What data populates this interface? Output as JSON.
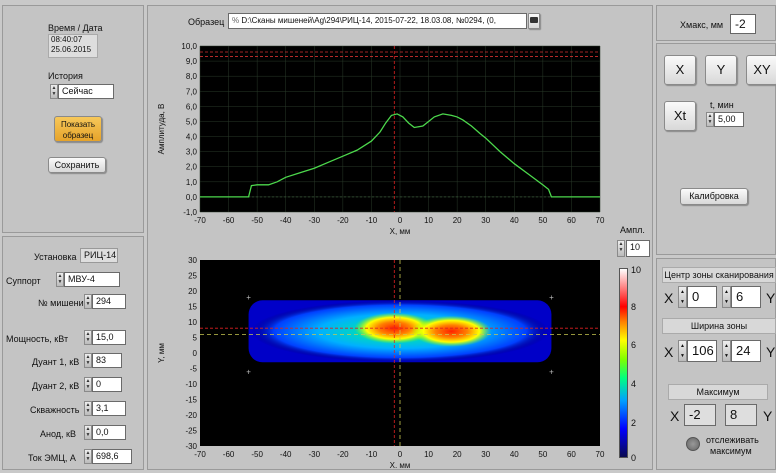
{
  "left": {
    "time_label": "Время / Дата",
    "time": "08:40:07",
    "date": "25.06.2015",
    "history_label": "История",
    "history_value": "Сейчас",
    "show_sample_button": "Показать образец",
    "save_button": "Сохранить",
    "install_label": "Установка",
    "install_value": "РИЦ-14",
    "support_label": "Суппорт",
    "support_value": "МВУ-4",
    "target_label": "№ мишени",
    "target_value": "294",
    "power_label": "Мощность, кВт",
    "power_value": "15,0",
    "duant1_label": "Дуант 1, кВ",
    "duant1_value": "83",
    "duant2_label": "Дуант 2, кВ",
    "duant2_value": "0",
    "duty_label": "Скважность",
    "duty_value": "3,1",
    "anode_label": "Анод, кВ",
    "anode_value": "0,0",
    "emc_label": "Ток ЭМЦ, А",
    "emc_value": "698,6"
  },
  "header": {
    "sample_label": "Образец",
    "sample_path": "D:\\Сканы мишеней\\Ag\\294\\РИЦ-14, 2015-07-22, 18.03.08, №0294, (0,",
    "path_prefix": "%"
  },
  "right": {
    "xmax_label": "Xмакс, мм",
    "xmax_value": "-2",
    "btn_x": "X",
    "btn_y": "Y",
    "btn_xy": "XY",
    "btn_xt": "Xt",
    "t_label": "t, мин",
    "t_value": "5,00",
    "calibration_button": "Калибровка",
    "scan_center_header": "Центр зоны сканирования",
    "scan_center_x_label": "X",
    "scan_center_x": "0",
    "scan_center_y": "6",
    "scan_center_y_label": "Y",
    "zone_width_header": "Ширина зоны",
    "zone_width_x_label": "X",
    "zone_width_x": "106",
    "zone_width_y": "24",
    "zone_width_y_label": "Y",
    "max_header": "Максимум",
    "max_x_label": "X",
    "max_x": "-2",
    "max_y": "8",
    "max_y_label": "Y",
    "track_label_1": "отслеживать",
    "track_label_2": "максимум"
  },
  "colorbar": {
    "title": "Ампл.",
    "max_value": "10",
    "ticks": [
      "10",
      "8",
      "6",
      "4",
      "2",
      "0"
    ]
  },
  "chart_data": [
    {
      "type": "line",
      "ylabel": "Амплитуда, В",
      "xlabel": "X, мм",
      "xlim": [
        -70,
        70
      ],
      "ylim": [
        -1,
        10
      ],
      "xticks": [
        "-70",
        "-60",
        "-50",
        "-40",
        "-30",
        "-20",
        "-10",
        "0",
        "10",
        "20",
        "30",
        "40",
        "50",
        "60",
        "70"
      ],
      "yticks": [
        "10,0",
        "9,0",
        "8,0",
        "7,0",
        "6,0",
        "5,0",
        "4,0",
        "3,0",
        "2,0",
        "1,0",
        "0,0",
        "-1,0"
      ],
      "series": [
        {
          "color": "#4cd84c",
          "x": [
            -70,
            -53,
            -52,
            -50,
            -46,
            -43,
            -40,
            -35,
            -30,
            -25,
            -20,
            -15,
            -10,
            -7,
            -5,
            -3,
            -1,
            1,
            3,
            5,
            8,
            10,
            12,
            15,
            18,
            20,
            22,
            25,
            28,
            30,
            35,
            40,
            45,
            50,
            52,
            53,
            70
          ],
          "y": [
            0,
            0,
            0.75,
            0.8,
            0.8,
            1.0,
            1.3,
            1.6,
            1.9,
            2.3,
            2.7,
            3.1,
            3.7,
            4.3,
            4.9,
            5.4,
            5.5,
            5.3,
            4.9,
            4.6,
            4.7,
            5.0,
            5.3,
            5.5,
            5.4,
            5.3,
            5.1,
            4.7,
            4.2,
            3.9,
            3.0,
            2.2,
            1.5,
            0.8,
            0.5,
            0,
            0
          ]
        }
      ],
      "reference_lines": {
        "red_vertical_x": -2,
        "red_horizontal_y": [
          9.3,
          9.6
        ]
      }
    },
    {
      "type": "heatmap",
      "ylabel": "Y, мм",
      "xlabel": "X, мм",
      "xlim": [
        -70,
        70
      ],
      "ylim": [
        -30,
        30
      ],
      "xticks": [
        "-70",
        "-60",
        "-50",
        "-40",
        "-30",
        "-20",
        "-10",
        "0",
        "10",
        "20",
        "30",
        "40",
        "50",
        "60",
        "70"
      ],
      "yticks": [
        "30",
        "25",
        "20",
        "15",
        "10",
        "5",
        "0",
        "-5",
        "-10",
        "-15",
        "-20",
        "-25",
        "-30"
      ],
      "colorscale_range": [
        0,
        10
      ],
      "hot_spots": [
        {
          "x": -2,
          "y": 8,
          "amplitude": 8.5
        },
        {
          "x": 18,
          "y": 7,
          "amplitude": 8
        }
      ],
      "crosshair": {
        "x": -2,
        "y": 8
      },
      "scan_zone_center": {
        "x": 0,
        "y": 6
      }
    }
  ]
}
